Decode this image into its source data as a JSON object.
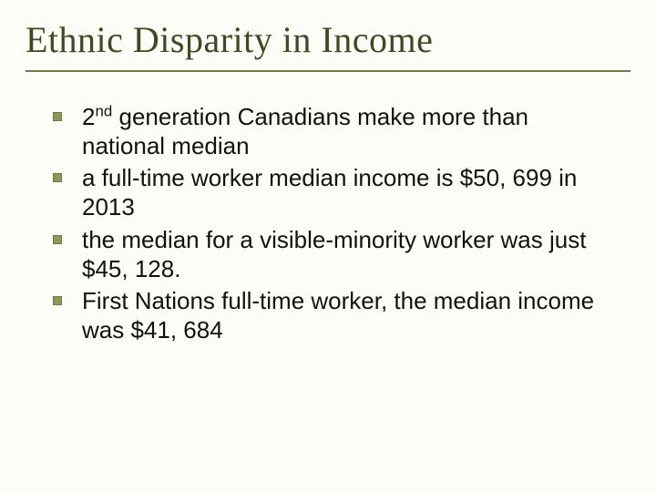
{
  "title": "Ethnic Disparity in Income",
  "title_color": "#3d4a23",
  "title_fontsize": 40,
  "title_fontfamily": "Garamond, Georgia, 'Times New Roman', serif",
  "underline_color": "#6b7a46",
  "background_color": "#fdfdf8",
  "bullet_marker_color": "#8a9a5b",
  "bullet_marker_border": "#6b7a46",
  "body_fontsize": 26,
  "body_color": "#111111",
  "bullets": [
    {
      "pre": "2",
      "sup": "nd",
      "post": " generation Canadians make more than national median"
    },
    {
      "pre": "a full-time worker median income is $50, 699 in 2013",
      "sup": "",
      "post": ""
    },
    {
      "pre": "the median for a visible-minority worker was just $45, 128.",
      "sup": "",
      "post": ""
    },
    {
      "pre": "First Nations full-time worker, the median income was $41, 684",
      "sup": "",
      "post": ""
    }
  ]
}
